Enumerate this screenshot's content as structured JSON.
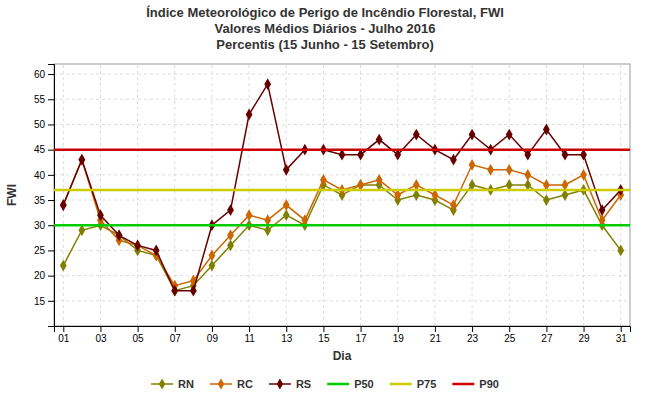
{
  "chart_data": {
    "type": "line",
    "title": "Índice Meteorológico de Perigo de Incêndio Florestal, FWI\nValores Médios Diários - Julho 2016\nPercentis (15 Junho - 15 Setembro)",
    "x_label": "Dia",
    "y_label": "FWI",
    "x": [
      1,
      2,
      3,
      4,
      5,
      6,
      7,
      8,
      9,
      10,
      11,
      12,
      13,
      14,
      15,
      16,
      17,
      18,
      19,
      20,
      21,
      22,
      23,
      24,
      25,
      26,
      27,
      28,
      29,
      30,
      31
    ],
    "xlim": [
      0.5,
      31.5
    ],
    "xticks": [
      {
        "value": 1,
        "label": "01"
      },
      {
        "value": 3,
        "label": "03"
      },
      {
        "value": 5,
        "label": "05"
      },
      {
        "value": 7,
        "label": "07"
      },
      {
        "value": 9,
        "label": "09"
      },
      {
        "value": 11,
        "label": "11"
      },
      {
        "value": 13,
        "label": "13"
      },
      {
        "value": 15,
        "label": "15"
      },
      {
        "value": 17,
        "label": "17"
      },
      {
        "value": 19,
        "label": "19"
      },
      {
        "value": 21,
        "label": "21"
      },
      {
        "value": 23,
        "label": "23"
      },
      {
        "value": 25,
        "label": "25"
      },
      {
        "value": 27,
        "label": "27"
      },
      {
        "value": 29,
        "label": "29"
      },
      {
        "value": 31,
        "label": "31"
      }
    ],
    "ylim": [
      10,
      62
    ],
    "yticks": [
      15,
      20,
      25,
      30,
      35,
      40,
      45,
      50,
      55,
      60
    ],
    "grid": true,
    "legend": "bottom",
    "series": [
      {
        "name": "RN",
        "color": "#808000",
        "marker": "diamond",
        "line_style": "solid",
        "values": [
          22,
          29,
          30,
          28,
          25,
          24,
          17,
          18,
          22,
          26,
          30,
          29,
          32,
          30,
          38,
          36,
          38,
          38,
          35,
          36,
          35,
          33,
          38,
          37,
          38,
          38,
          35,
          36,
          37,
          30,
          25
        ]
      },
      {
        "name": "RC",
        "color": "#CC6600",
        "marker": "diamond",
        "line_style": "solid",
        "values": [
          34,
          43,
          31,
          27,
          26,
          24,
          18,
          19,
          24,
          28,
          32,
          31,
          34,
          31,
          39,
          37,
          38,
          39,
          36,
          38,
          36,
          34,
          42,
          41,
          41,
          40,
          38,
          38,
          40,
          31,
          36
        ]
      },
      {
        "name": "RS",
        "color": "#660000",
        "marker": "diamond",
        "line_style": "solid",
        "values": [
          34,
          43,
          32,
          28,
          26,
          25,
          17,
          17,
          30,
          33,
          52,
          58,
          41,
          45,
          45,
          44,
          44,
          47,
          44,
          48,
          45,
          43,
          48,
          45,
          48,
          44,
          49,
          44,
          44,
          33,
          37
        ]
      },
      {
        "name": "P50",
        "type": "hline",
        "color": "#00CC00",
        "line_style": "solid",
        "value": 30
      },
      {
        "name": "P75",
        "type": "hline",
        "color": "#CCCC00",
        "line_style": "solid",
        "value": 37
      },
      {
        "name": "P90",
        "type": "hline",
        "color": "#CC0000",
        "line_style": "solid",
        "value": 45
      }
    ]
  }
}
